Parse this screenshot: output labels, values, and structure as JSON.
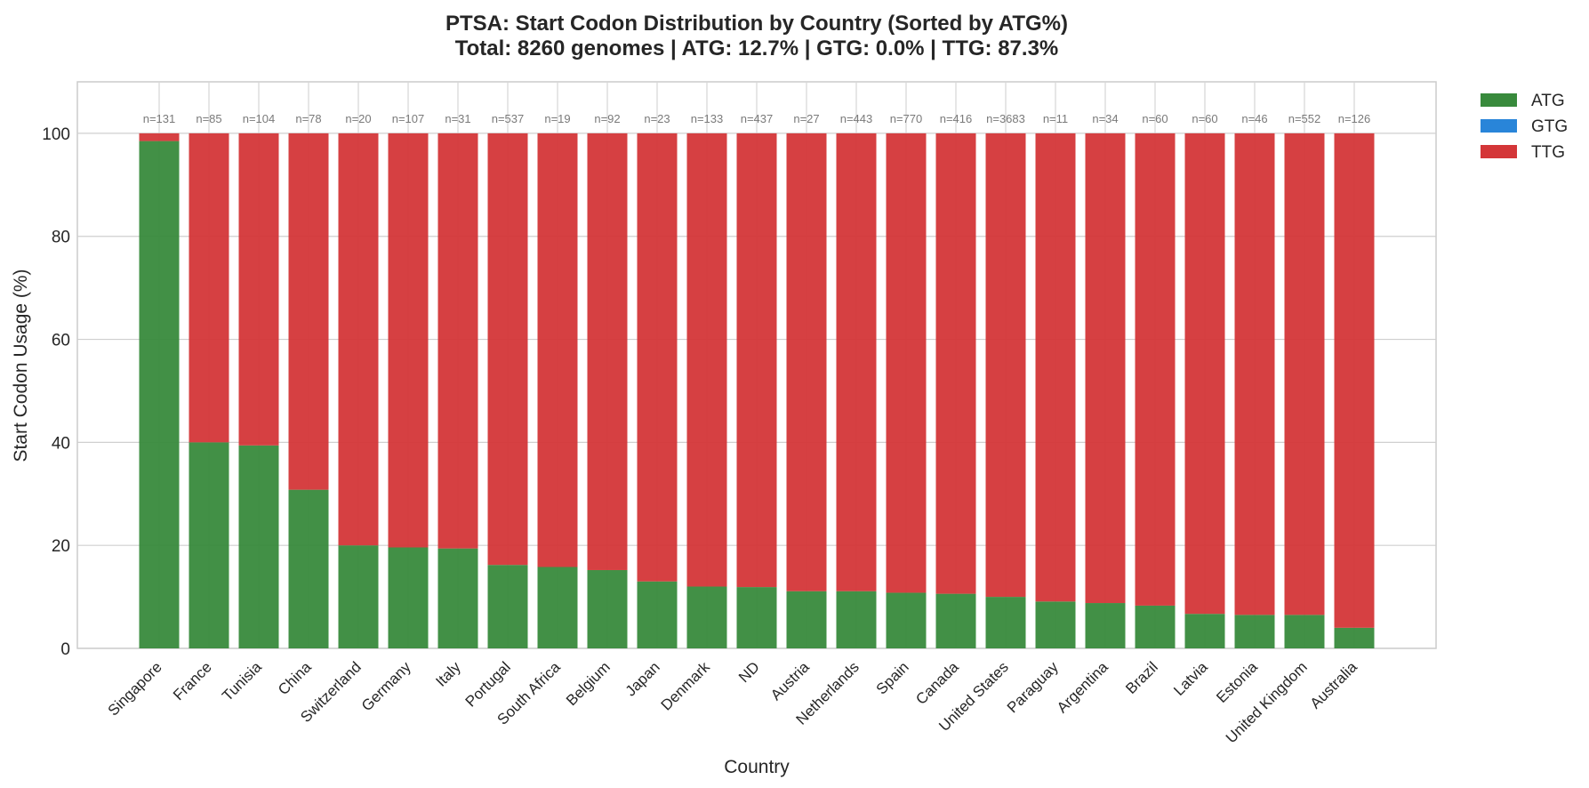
{
  "chart_data": {
    "type": "bar",
    "stacked": true,
    "title": "PTSA: Start Codon Distribution by Country (Sorted by ATG%)",
    "subtitle": "Total: 8260 genomes | ATG: 12.7% | GTG: 0.0% | TTG: 87.3%",
    "xlabel": "Country",
    "ylabel": "Start Codon Usage (%)",
    "ylim": [
      0,
      110
    ],
    "yticks": [
      0,
      20,
      40,
      60,
      80,
      100
    ],
    "grid": true,
    "legend_position": "outside-top-right",
    "categories": [
      "Singapore",
      "France",
      "Tunisia",
      "China",
      "Switzerland",
      "Germany",
      "Italy",
      "Portugal",
      "South Africa",
      "Belgium",
      "Japan",
      "Denmark",
      "ND",
      "Austria",
      "Netherlands",
      "Spain",
      "Canada",
      "United States",
      "Paraguay",
      "Argentina",
      "Brazil",
      "Latvia",
      "Estonia",
      "United Kingdom",
      "Australia"
    ],
    "n_labels": [
      "n=131",
      "n=85",
      "n=104",
      "n=78",
      "n=20",
      "n=107",
      "n=31",
      "n=537",
      "n=19",
      "n=92",
      "n=23",
      "n=133",
      "n=437",
      "n=27",
      "n=443",
      "n=770",
      "n=416",
      "n=3683",
      "n=11",
      "n=34",
      "n=60",
      "n=60",
      "n=46",
      "n=552",
      "n=126"
    ],
    "series": [
      {
        "name": "ATG",
        "color": "#388a3c",
        "values": [
          98.5,
          40.0,
          39.4,
          30.8,
          20.0,
          19.6,
          19.4,
          16.2,
          15.8,
          15.2,
          13.0,
          12.0,
          11.9,
          11.1,
          11.1,
          10.8,
          10.6,
          10.0,
          9.1,
          8.8,
          8.3,
          6.7,
          6.5,
          6.5,
          4.0
        ]
      },
      {
        "name": "GTG",
        "color": "#2985d9",
        "values": [
          0,
          0,
          0,
          0,
          0,
          0,
          0,
          0,
          0,
          0,
          0,
          0,
          0,
          0,
          0,
          0,
          0,
          0,
          0,
          0,
          0,
          0,
          0,
          0,
          0
        ]
      },
      {
        "name": "TTG",
        "color": "#d43638",
        "values": [
          1.5,
          60.0,
          60.6,
          69.2,
          80.0,
          80.4,
          80.6,
          83.8,
          84.2,
          84.8,
          87.0,
          88.0,
          88.1,
          88.9,
          88.9,
          89.2,
          89.4,
          90.0,
          90.9,
          91.2,
          91.7,
          93.3,
          93.5,
          93.5,
          96.0
        ]
      }
    ]
  }
}
